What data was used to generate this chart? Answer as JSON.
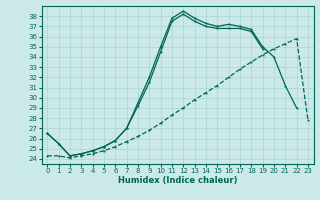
{
  "xlabel": "Humidex (Indice chaleur)",
  "bg_color": "#cce9e9",
  "grid_color": "#aad4d4",
  "line_color": "#006655",
  "xlim": [
    -0.5,
    23.5
  ],
  "ylim": [
    23.5,
    39.0
  ],
  "xticks": [
    0,
    1,
    2,
    3,
    4,
    5,
    6,
    7,
    8,
    9,
    10,
    11,
    12,
    13,
    14,
    15,
    16,
    17,
    18,
    19,
    20,
    21,
    22,
    23
  ],
  "yticks": [
    24,
    25,
    26,
    27,
    28,
    29,
    30,
    31,
    32,
    33,
    34,
    35,
    36,
    37,
    38
  ],
  "line1_x": [
    0,
    1,
    2,
    3,
    4,
    5,
    6,
    7,
    8,
    9,
    10,
    11,
    12,
    13,
    14,
    15,
    16,
    17,
    18,
    19,
    20,
    21,
    22
  ],
  "line1_y": [
    26.5,
    25.5,
    24.3,
    24.5,
    24.8,
    25.2,
    25.8,
    27.0,
    29.5,
    32.0,
    35.0,
    37.8,
    38.5,
    37.8,
    37.3,
    37.0,
    37.2,
    37.0,
    36.7,
    35.0,
    34.0,
    31.2,
    29.0
  ],
  "line2_x": [
    0,
    1,
    2,
    3,
    4,
    5,
    6,
    7,
    8,
    9,
    10,
    11,
    12,
    13,
    14,
    15,
    16,
    17,
    18,
    19
  ],
  "line2_y": [
    26.5,
    25.5,
    24.3,
    24.5,
    24.8,
    25.2,
    25.8,
    27.0,
    29.2,
    31.5,
    34.5,
    37.5,
    38.2,
    37.5,
    37.0,
    36.8,
    36.8,
    36.8,
    36.5,
    34.8
  ],
  "line3_x": [
    0,
    1,
    2,
    3,
    4,
    5,
    6,
    7,
    8,
    9,
    10,
    11,
    12,
    13,
    14,
    15,
    16,
    17,
    18,
    19,
    20,
    21,
    22,
    23
  ],
  "line3_y": [
    24.3,
    24.3,
    24.1,
    24.3,
    24.5,
    24.8,
    25.2,
    25.7,
    26.2,
    26.8,
    27.5,
    28.3,
    29.0,
    29.8,
    30.5,
    31.2,
    32.0,
    32.8,
    33.5,
    34.2,
    34.8,
    35.3,
    35.8,
    27.8
  ]
}
